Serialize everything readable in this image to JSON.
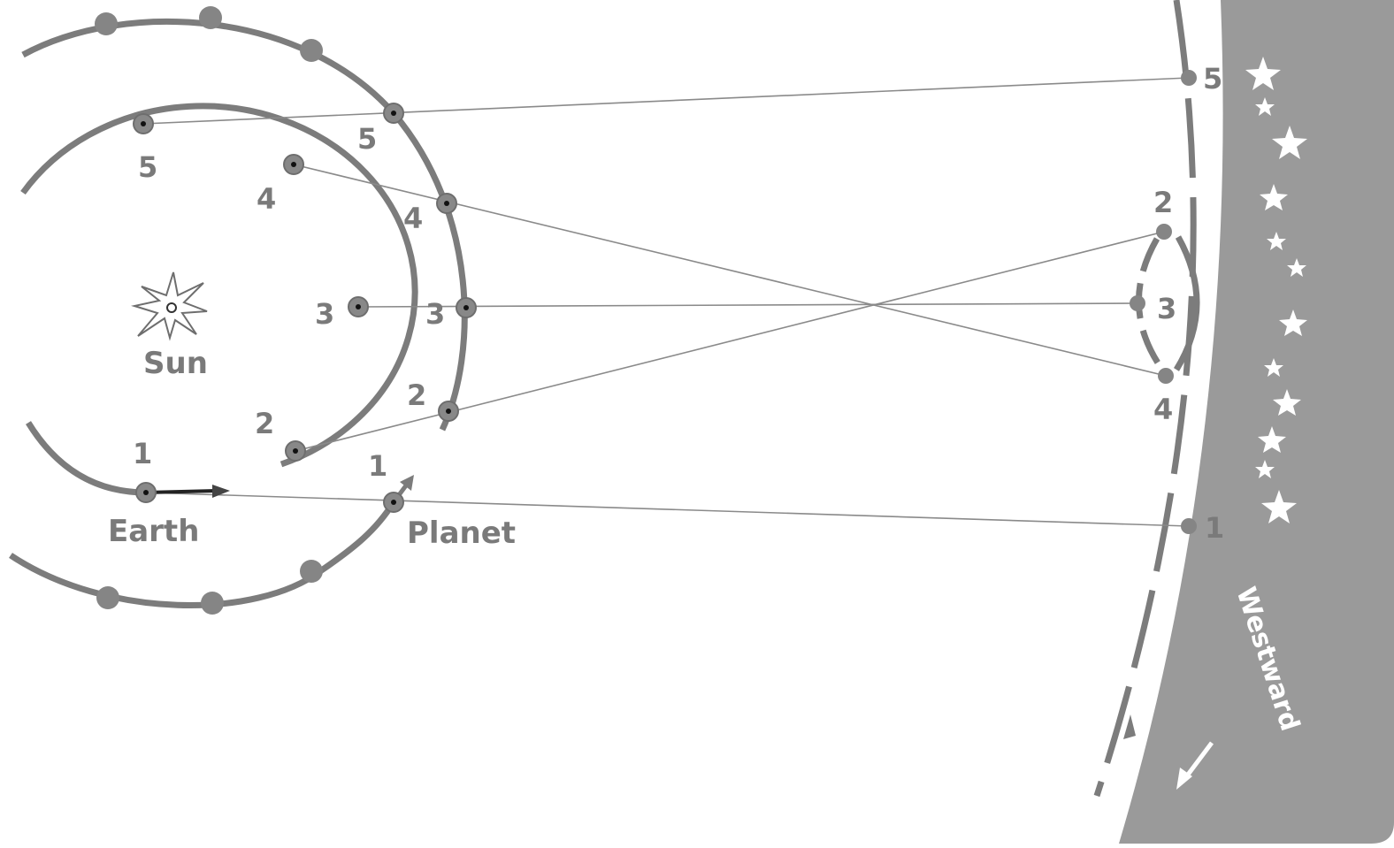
{
  "labels": {
    "sun": "Sun",
    "earth": "Earth",
    "planet": "Planet",
    "westward": "Westward"
  },
  "earth_positions": [
    "1",
    "2",
    "3",
    "4",
    "5"
  ],
  "planet_positions": [
    "1",
    "2",
    "3",
    "4",
    "5"
  ],
  "sky_positions": [
    "1",
    "2",
    "3",
    "4",
    "5"
  ],
  "colors": {
    "orbit": "#7c7c7c",
    "band": "#9a9a9a",
    "text": "#7a7a7a",
    "star": "#ffffff"
  }
}
